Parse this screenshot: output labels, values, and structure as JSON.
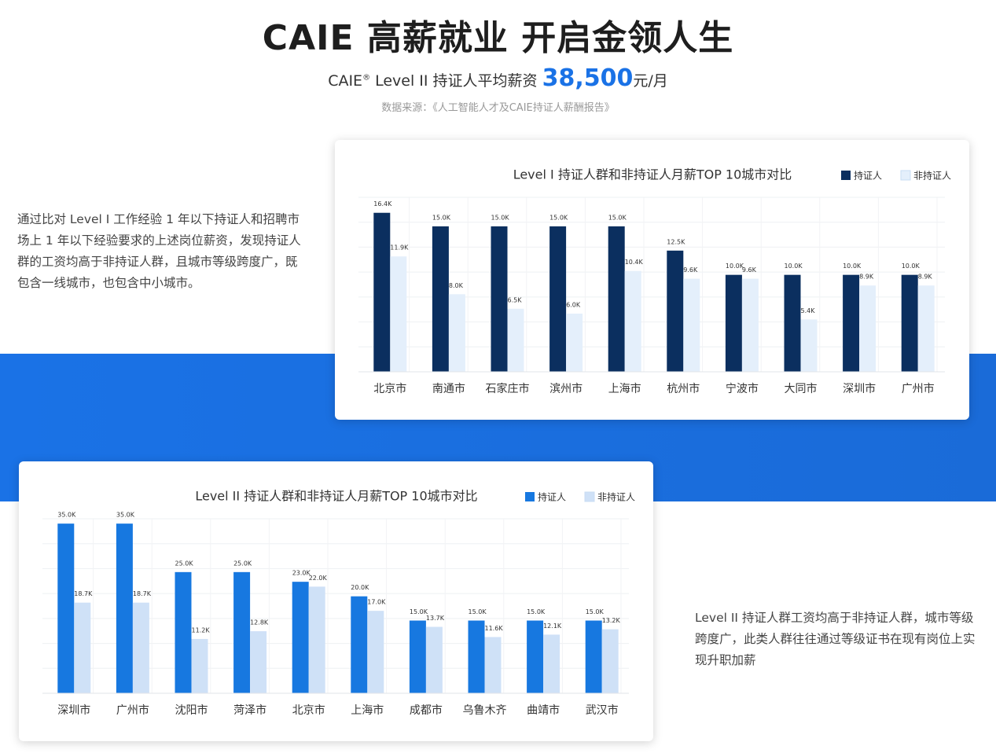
{
  "header": {
    "title": "CAIE 高薪就业  开启金领人生",
    "brand": "CAIE",
    "registered": "®",
    "subtitle": "Level II  持证人平均薪资",
    "salary": "38,500",
    "unit": "元/月",
    "source": "数据来源：《人工智能人才及CAIE持证人薪酬报告》"
  },
  "paragraphs": [
    "通过比对 Level I 工作经验 1 年以下持证人和招聘市场上 1 年以下经验要求的上述岗位薪资，发现持证人群的工资均高于非持证人群，且城市等级跨度广，既包含一线城市，也包含中小城市。",
    "Level II 持证人群工资均高于非持证人群，城市等级跨度广，此类人群往往通过等级证书在现有岗位上实现升职加薪"
  ],
  "chart_data": [
    {
      "type": "bar",
      "title": "Level I 持证人群和非持证人月薪TOP 10城市对比",
      "categories": [
        "北京市",
        "南通市",
        "石家庄市",
        "滨州市",
        "上海市",
        "杭州市",
        "宁波市",
        "大同市",
        "深圳市",
        "广州市"
      ],
      "ylim": [
        0,
        18
      ],
      "grid": true,
      "series": [
        {
          "name": "持证人",
          "color": "#0b2f5f",
          "values": [
            16.4,
            15.0,
            15.0,
            15.0,
            15.0,
            12.5,
            10.0,
            10.0,
            10.0,
            10.0
          ],
          "value_labels": [
            "16.4K",
            "15.0K",
            "15.0K",
            "15.0K",
            "15.0K",
            "12.5K",
            "10.0K",
            "10.0K",
            "10.0K",
            "10.0K"
          ]
        },
        {
          "name": "非持证人",
          "color": "#e4effb",
          "values": [
            11.9,
            8.0,
            6.5,
            6.0,
            10.4,
            9.6,
            9.6,
            5.4,
            8.9,
            8.9
          ],
          "value_labels": [
            "11.9K",
            "8.0K",
            "6.5K",
            "6.0K",
            "10.4K",
            "9.6K",
            "9.6K",
            "5.4K",
            "8.9K",
            "8.9K"
          ]
        }
      ]
    },
    {
      "type": "bar",
      "title": "Level II 持证人群和非持证人月薪TOP 10城市对比",
      "categories": [
        "深圳市",
        "广州市",
        "沈阳市",
        "菏泽市",
        "北京市",
        "上海市",
        "成都市",
        "乌鲁木齐",
        "曲靖市",
        "武汉市"
      ],
      "ylim": [
        0,
        36
      ],
      "grid": true,
      "series": [
        {
          "name": "持证人",
          "color": "#1778e0",
          "values": [
            35.0,
            35.0,
            25.0,
            25.0,
            23.0,
            20.0,
            15.0,
            15.0,
            15.0,
            15.0
          ],
          "value_labels": [
            "35.0K",
            "35.0K",
            "25.0K",
            "25.0K",
            "23.0K",
            "20.0K",
            "15.0K",
            "15.0K",
            "15.0K",
            "15.0K"
          ]
        },
        {
          "name": "非持证人",
          "color": "#cfe1f7",
          "values": [
            18.7,
            18.7,
            11.2,
            12.8,
            22.0,
            17.0,
            13.7,
            11.6,
            12.1,
            13.2
          ],
          "value_labels": [
            "18.7K",
            "18.7K",
            "11.2K",
            "12.8K",
            "22.0K",
            "17.0K",
            "13.7K",
            "11.6K",
            "12.1K",
            "13.2K"
          ]
        }
      ]
    }
  ]
}
